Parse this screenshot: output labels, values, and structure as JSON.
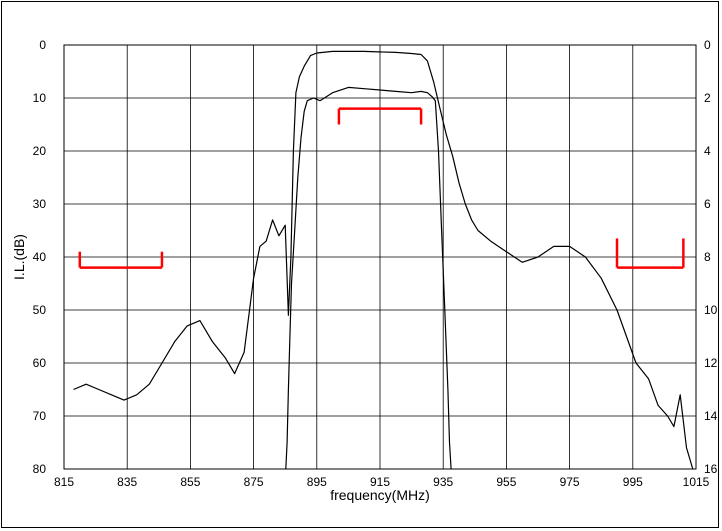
{
  "chart_data": {
    "type": "line",
    "title": "",
    "xlabel": "frequency(MHz)",
    "ylabel": "I.L.(dB)",
    "xlim": [
      815,
      1015
    ],
    "ylim_left": [
      0,
      80
    ],
    "ylim_right": [
      0,
      16
    ],
    "y_inverted": true,
    "grid": true,
    "legend": "none",
    "x_ticks": [
      "815",
      "835",
      "855",
      "875",
      "895",
      "915",
      "935",
      "955",
      "975",
      "995",
      "1015"
    ],
    "y_ticks_left": [
      "0",
      "10",
      "20",
      "30",
      "40",
      "50",
      "60",
      "70",
      "80"
    ],
    "y_ticks_right": [
      "0",
      "2",
      "4",
      "6",
      "8",
      "10",
      "12",
      "14",
      "16"
    ],
    "series": [
      {
        "axis": "left",
        "color": "#000000",
        "x": [
          818,
          822,
          826,
          830,
          834,
          838,
          842,
          846,
          850,
          854,
          858,
          862,
          866,
          869,
          872,
          875,
          877,
          879,
          881,
          883,
          885,
          886,
          886.8,
          887.6,
          888.4,
          889.5,
          891,
          893,
          895,
          900,
          910,
          920,
          925,
          928,
          930,
          932,
          934,
          936,
          938,
          940,
          942,
          944,
          946,
          950,
          955,
          960,
          965,
          970,
          975,
          980,
          985,
          990,
          993,
          996,
          1000,
          1003,
          1006,
          1008,
          1010,
          1012,
          1014
        ],
        "y": [
          65,
          64,
          65,
          66,
          67,
          66,
          64,
          60,
          56,
          53,
          52,
          56,
          59,
          62,
          58,
          44,
          38,
          37,
          33,
          36,
          34,
          51,
          40,
          20,
          9,
          6,
          4,
          2,
          1.5,
          1.2,
          1.2,
          1.4,
          1.6,
          1.8,
          3,
          7,
          12,
          17,
          21,
          26,
          30,
          33,
          35,
          37,
          39,
          41,
          40,
          38,
          38,
          40,
          44,
          50,
          55,
          60,
          63,
          68,
          70,
          72,
          66,
          76,
          80
        ]
      },
      {
        "axis": "right",
        "color": "#000000",
        "x": [
          885.2,
          885.6,
          886,
          886.5,
          887,
          888,
          889,
          890,
          891,
          892,
          894,
          896,
          900,
          905,
          910,
          915,
          920,
          925,
          928,
          930,
          931.5,
          932.5,
          933.5,
          934.5,
          935.5,
          936.5,
          937,
          937.5
        ],
        "y": [
          16,
          15,
          13,
          11,
          9,
          7,
          5,
          3.5,
          2.5,
          2.1,
          2,
          2.1,
          1.8,
          1.6,
          1.65,
          1.7,
          1.75,
          1.8,
          1.75,
          1.8,
          1.95,
          2.1,
          4,
          7,
          10,
          13,
          15,
          16
        ]
      }
    ],
    "annotations": [
      {
        "type": "spec-bracket",
        "color": "#ff0000",
        "x_start": 820,
        "x_end": 846,
        "y": 42,
        "tick_top": 39
      },
      {
        "type": "spec-bracket",
        "color": "#ff0000",
        "x_start": 902,
        "x_end": 928,
        "y": 12,
        "tick_bottom": 15
      },
      {
        "type": "spec-bracket",
        "color": "#ff0000",
        "x_start": 990,
        "x_end": 1011,
        "y": 42,
        "tick_top": 36.5
      }
    ]
  }
}
